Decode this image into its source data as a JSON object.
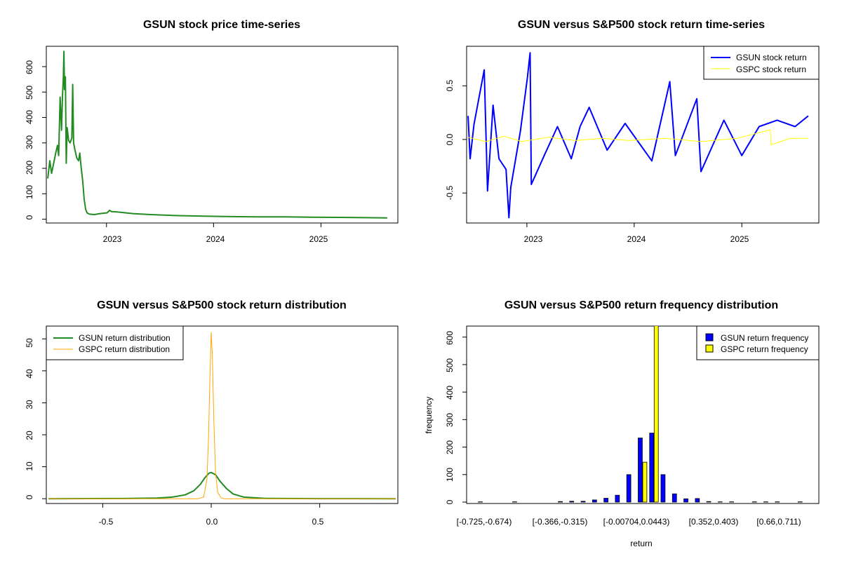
{
  "colors": {
    "gsun_price": "#228B22",
    "gsun_return": "#0000FF",
    "gspc_return": "#FFFF00",
    "gsun_density": "#228B22",
    "gspc_density": "#FFA500",
    "gsun_hist": "#0000FF",
    "gspc_hist": "#FFFF00"
  },
  "chart_data": [
    {
      "id": "price",
      "type": "line",
      "title": "GSUN stock price time-series",
      "xlabel": "",
      "ylabel": "",
      "x_ticks": [
        "2023",
        "2024",
        "2025"
      ],
      "y_ticks": [
        "0",
        "100",
        "200",
        "300",
        "400",
        "500",
        "600"
      ],
      "xlim": [
        "2022-06-10",
        "2025-09-20"
      ],
      "ylim": [
        -15,
        680
      ],
      "series": [
        {
          "color_key": "gsun_price",
          "points": [
            [
              "2022-06-15",
              160
            ],
            [
              "2022-06-22",
              230
            ],
            [
              "2022-06-28",
              180
            ],
            [
              "2022-07-05",
              220
            ],
            [
              "2022-07-12",
              260
            ],
            [
              "2022-07-18",
              290
            ],
            [
              "2022-07-22",
              250
            ],
            [
              "2022-07-27",
              480
            ],
            [
              "2022-08-01",
              350
            ],
            [
              "2022-08-04",
              480
            ],
            [
              "2022-08-07",
              560
            ],
            [
              "2022-08-09",
              660
            ],
            [
              "2022-08-11",
              510
            ],
            [
              "2022-08-14",
              560
            ],
            [
              "2022-08-17",
              220
            ],
            [
              "2022-08-20",
              360
            ],
            [
              "2022-08-25",
              310
            ],
            [
              "2022-08-30",
              300
            ],
            [
              "2022-09-05",
              320
            ],
            [
              "2022-09-08",
              530
            ],
            [
              "2022-09-11",
              300
            ],
            [
              "2022-09-16",
              270
            ],
            [
              "2022-09-22",
              240
            ],
            [
              "2022-09-28",
              230
            ],
            [
              "2022-10-02",
              260
            ],
            [
              "2022-10-07",
              200
            ],
            [
              "2022-10-12",
              150
            ],
            [
              "2022-10-17",
              80
            ],
            [
              "2022-10-22",
              40
            ],
            [
              "2022-10-27",
              25
            ],
            [
              "2022-11-03",
              20
            ],
            [
              "2022-11-20",
              18
            ],
            [
              "2022-12-10",
              22
            ],
            [
              "2023-01-03",
              25
            ],
            [
              "2023-01-12",
              35
            ],
            [
              "2023-01-18",
              30
            ],
            [
              "2023-02-10",
              28
            ],
            [
              "2023-04-01",
              22
            ],
            [
              "2023-06-01",
              18
            ],
            [
              "2023-09-01",
              14
            ],
            [
              "2023-12-01",
              12
            ],
            [
              "2024-03-01",
              10
            ],
            [
              "2024-06-01",
              9
            ],
            [
              "2024-09-01",
              9
            ],
            [
              "2024-12-01",
              8
            ],
            [
              "2025-03-01",
              7
            ],
            [
              "2025-06-01",
              6
            ],
            [
              "2025-08-15",
              5
            ]
          ]
        }
      ]
    },
    {
      "id": "returns",
      "type": "line",
      "title": "GSUN versus S&P500 stock return time-series",
      "xlabel": "",
      "ylabel": "",
      "x_ticks": [
        "2023",
        "2024",
        "2025"
      ],
      "y_ticks": [
        "-0.5",
        "0.0",
        "0.5"
      ],
      "xlim": [
        "2022-06-10",
        "2025-09-20"
      ],
      "ylim": [
        -0.78,
        0.87
      ],
      "legend": {
        "position": "top-right",
        "entries": [
          "GSUN stock return",
          "GSPC stock return"
        ]
      },
      "series": [
        {
          "name": "GSUN stock return",
          "color_key": "gsun_return",
          "points": [
            [
              "2022-06-15",
              0.22
            ],
            [
              "2022-06-22",
              -0.18
            ],
            [
              "2022-07-05",
              0.14
            ],
            [
              "2022-08-09",
              0.65
            ],
            [
              "2022-08-20",
              -0.48
            ],
            [
              "2022-09-08",
              0.32
            ],
            [
              "2022-09-28",
              -0.18
            ],
            [
              "2022-10-22",
              -0.28
            ],
            [
              "2022-11-01",
              -0.73
            ],
            [
              "2022-11-07",
              -0.45
            ],
            [
              "2022-12-10",
              0.08
            ],
            [
              "2023-01-03",
              0.58
            ],
            [
              "2023-01-12",
              0.81
            ],
            [
              "2023-01-16",
              -0.42
            ],
            [
              "2023-03-01",
              -0.15
            ],
            [
              "2023-04-15",
              0.12
            ],
            [
              "2023-06-01",
              -0.18
            ],
            [
              "2023-07-01",
              0.12
            ],
            [
              "2023-08-01",
              0.3
            ],
            [
              "2023-10-01",
              -0.1
            ],
            [
              "2023-12-01",
              0.15
            ],
            [
              "2024-03-01",
              -0.2
            ],
            [
              "2024-05-01",
              0.54
            ],
            [
              "2024-05-20",
              -0.15
            ],
            [
              "2024-08-01",
              0.38
            ],
            [
              "2024-08-15",
              -0.3
            ],
            [
              "2024-11-01",
              0.18
            ],
            [
              "2025-01-01",
              -0.15
            ],
            [
              "2025-03-01",
              0.12
            ],
            [
              "2025-05-01",
              0.18
            ],
            [
              "2025-07-01",
              0.12
            ],
            [
              "2025-08-15",
              0.22
            ]
          ]
        },
        {
          "name": "GSPC stock return",
          "color_key": "gspc_return",
          "points": [
            [
              "2022-06-15",
              0.02
            ],
            [
              "2022-08-15",
              -0.02
            ],
            [
              "2022-10-15",
              0.03
            ],
            [
              "2022-12-15",
              -0.02
            ],
            [
              "2023-03-15",
              0.02
            ],
            [
              "2023-06-15",
              -0.01
            ],
            [
              "2023-09-15",
              0.01
            ],
            [
              "2023-12-15",
              -0.01
            ],
            [
              "2024-04-15",
              0.01
            ],
            [
              "2024-08-15",
              -0.02
            ],
            [
              "2024-12-15",
              0.01
            ],
            [
              "2025-04-08",
              0.09
            ],
            [
              "2025-04-10",
              -0.05
            ],
            [
              "2025-06-15",
              0.01
            ],
            [
              "2025-08-15",
              0.01
            ]
          ]
        }
      ]
    },
    {
      "id": "density",
      "type": "line",
      "title": "GSUN versus S&P500 stock return distribution",
      "xlabel": "",
      "ylabel": "",
      "x_ticks": [
        "-0.5",
        "0.0",
        "0.5"
      ],
      "y_ticks": [
        "0",
        "10",
        "20",
        "30",
        "40",
        "50"
      ],
      "xlim": [
        -0.76,
        0.86
      ],
      "ylim": [
        -1.5,
        54
      ],
      "legend": {
        "position": "top-left",
        "entries": [
          "GSUN return distribution",
          "GSPC return distribution"
        ]
      },
      "series": [
        {
          "name": "GSUN return distribution",
          "color_key": "gsun_density",
          "points": [
            [
              -0.75,
              0
            ],
            [
              -0.4,
              0.05
            ],
            [
              -0.25,
              0.2
            ],
            [
              -0.18,
              0.5
            ],
            [
              -0.12,
              1.2
            ],
            [
              -0.08,
              2.5
            ],
            [
              -0.05,
              4.5
            ],
            [
              -0.03,
              6.5
            ],
            [
              -0.01,
              8.0
            ],
            [
              0.0,
              8.2
            ],
            [
              0.02,
              7.5
            ],
            [
              0.04,
              5.5
            ],
            [
              0.07,
              3.2
            ],
            [
              0.1,
              1.5
            ],
            [
              0.15,
              0.5
            ],
            [
              0.25,
              0.1
            ],
            [
              0.5,
              0.02
            ],
            [
              0.85,
              0
            ]
          ]
        },
        {
          "name": "GSPC return distribution",
          "color_key": "gspc_density",
          "points": [
            [
              -0.75,
              0
            ],
            [
              -0.06,
              0
            ],
            [
              -0.035,
              0.5
            ],
            [
              -0.02,
              6
            ],
            [
              -0.012,
              20
            ],
            [
              -0.006,
              38
            ],
            [
              0.0,
              52
            ],
            [
              0.005,
              45
            ],
            [
              0.012,
              25
            ],
            [
              0.02,
              8
            ],
            [
              0.03,
              2
            ],
            [
              0.045,
              0.3
            ],
            [
              0.06,
              0
            ],
            [
              0.85,
              0
            ]
          ]
        }
      ]
    },
    {
      "id": "histogram",
      "type": "bar",
      "title": "GSUN versus S&P500 return frequency distribution",
      "xlabel": "return",
      "ylabel": "frequency",
      "x_ticks": [
        "[-0.725,-0.674)",
        "[-0.366,-0.315)",
        "[-0.00704,0.0443)",
        "[0.352,0.403)",
        "[0.66,0.711)"
      ],
      "y_ticks": [
        "0",
        "100",
        "200",
        "300",
        "400",
        "500",
        "600"
      ],
      "ylim": [
        0,
        640
      ],
      "legend": {
        "position": "top-right",
        "entries": [
          "GSUN return frequency",
          "GSPC return frequency"
        ]
      },
      "x_tick_bin_index": [
        0,
        7,
        14,
        21,
        27
      ],
      "n_bins": 29,
      "series": [
        {
          "name": "GSUN return frequency",
          "color_key": "gsun_hist",
          "values": [
            1,
            0,
            0,
            1,
            0,
            0,
            0,
            2,
            3,
            3,
            8,
            14,
            25,
            100,
            233,
            251,
            100,
            30,
            12,
            13,
            2,
            1,
            1,
            0,
            1,
            1,
            1,
            0,
            1
          ]
        },
        {
          "name": "GSPC return frequency",
          "color_key": "gspc_hist",
          "values": [
            0,
            0,
            0,
            0,
            0,
            0,
            0,
            0,
            0,
            0,
            0,
            0,
            0,
            0,
            145,
            660,
            0,
            0,
            0,
            0,
            0,
            0,
            0,
            0,
            0,
            0,
            0,
            0,
            0
          ]
        }
      ]
    }
  ]
}
